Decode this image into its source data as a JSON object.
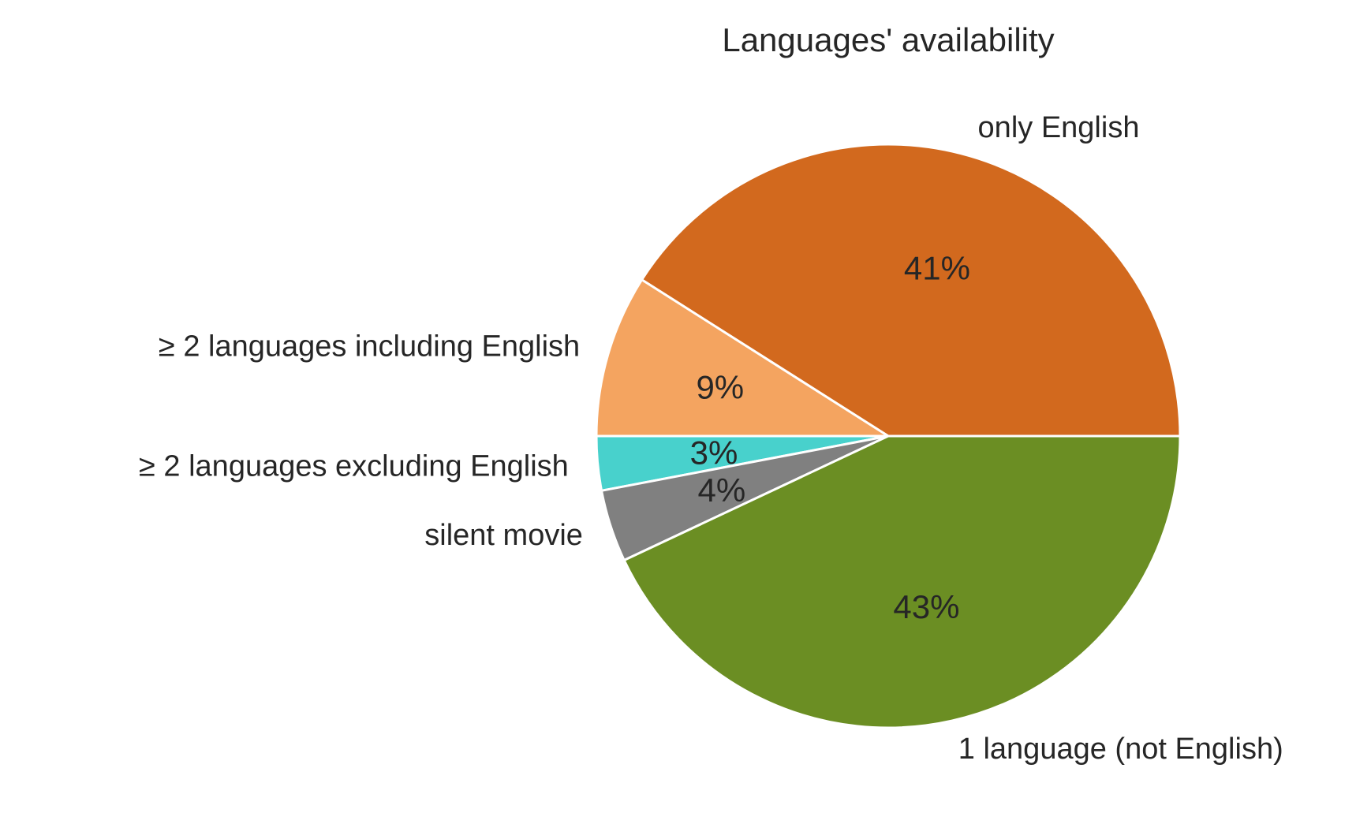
{
  "chart_data": {
    "type": "pie",
    "title": "Languages' availability",
    "start_angle_deg": 0,
    "direction": "counterclockwise",
    "slices": [
      {
        "label": "only English",
        "value": 41,
        "pct_label": "41%",
        "color": "#d2691e"
      },
      {
        "label": "≥  2 languages including English",
        "value": 9,
        "pct_label": "9%",
        "color": "#f4a460"
      },
      {
        "label": "≥  2 languages excluding English",
        "value": 3,
        "pct_label": "3%",
        "color": "#48d1cc"
      },
      {
        "label": "silent movie",
        "value": 4,
        "pct_label": "4%",
        "color": "#808080"
      },
      {
        "label": "1 language (not English)",
        "value": 43,
        "pct_label": "43%",
        "color": "#6b8e23"
      }
    ],
    "edge_color": "#ffffff",
    "legend": "none"
  }
}
